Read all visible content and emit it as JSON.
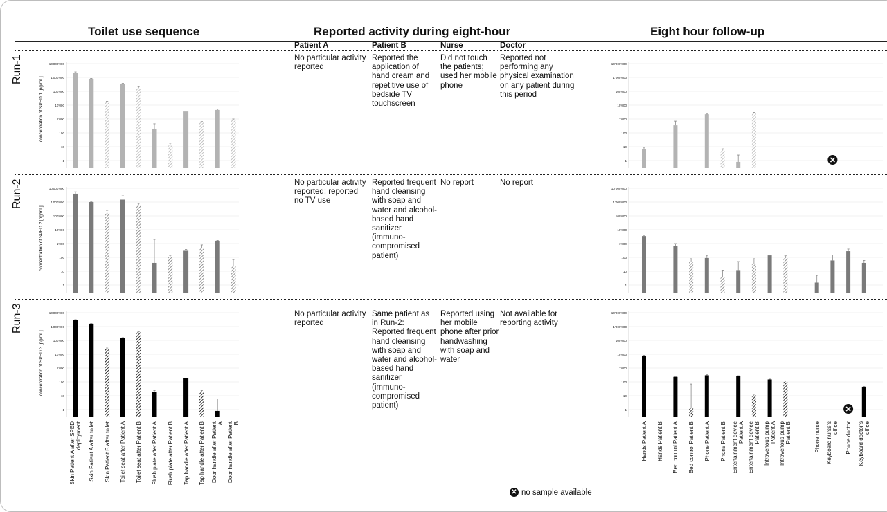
{
  "headers": {
    "toilet": "Toilet use sequence",
    "activity": "Reported activity during eight-hour",
    "followup": "Eight hour follow-up"
  },
  "columns": {
    "patient_a": "Patient A",
    "patient_b": "Patient B",
    "nurse": "Nurse",
    "doctor": "Doctor"
  },
  "runs": [
    {
      "label": "Run-1",
      "ylabel": "concentration of SPED 1 [pg/mL]",
      "notes": {
        "patient_a": "No particular activity reported",
        "patient_b": "Reported the application of hand cream and repetitive use of bedside TV touchscreen",
        "nurse": "Did not touch the patients; used her mobile phone",
        "doctor": "Reported not performing any physical examination on any patient during this period"
      }
    },
    {
      "label": "Run-2",
      "ylabel": "concentration of SPED 2 [pg/mL]",
      "notes": {
        "patient_a": "No particular activity reported; reported no TV use",
        "patient_b": "Reported frequent hand cleansing with soap and water and alcohol-based hand sanitizer (immuno-compromised patient)",
        "nurse": "No report",
        "doctor": "No report"
      }
    },
    {
      "label": "Run-3",
      "ylabel": "concentration of SPED 3 [pg/mL]",
      "notes": {
        "patient_a": "No particular activity reported",
        "patient_b": "Same patient as in Run-2: Reported frequent hand cleansing with soap and water and alcohol-based hand sanitizer (immuno-compromised patient)",
        "nurse": "Reported using her mobile phone after prior handwashing with soap and water",
        "doctor": "Not available for reporting activity"
      }
    }
  ],
  "legend": {
    "icon": "x-circle-icon",
    "text": "no sample available"
  },
  "colors": {
    "run1": "#b3b3b3",
    "run2": "#7a7a7a",
    "run3": "#000000"
  },
  "chart_data": [
    {
      "type": "bar",
      "panel": "Toilet use sequence",
      "yscale": "log",
      "ylim": [
        0.3,
        10000000
      ],
      "y_tick_labels": [
        "10'000'000",
        "1'000'000",
        "100'000",
        "10'000",
        "1'000",
        "100",
        "10",
        "1"
      ],
      "categories": [
        "Skin Patient A after SPED deployment",
        "Skin Patient A after toilet",
        "Skin Patient B after toilet",
        "Toilet seat after Patient A",
        "Toilet seat after Patient B",
        "Flush plate after Patient A",
        "Flush plate after Patient B",
        "Tap handle after Patient A",
        "Tap handle after Patient B",
        "Door handle after Patient A",
        "Door handle after Patient B"
      ],
      "hatched": [
        false,
        false,
        true,
        false,
        true,
        false,
        true,
        false,
        true,
        false,
        true
      ],
      "series": [
        {
          "name": "Run-1",
          "values": [
            2000000,
            800000,
            17000,
            350000,
            180000,
            200,
            12,
            3500,
            550,
            4500,
            900
          ],
          "err_hi": [
            2500000,
            850000,
            19000,
            370000,
            220000,
            450,
            18,
            3800,
            650,
            5200,
            1000
          ]
        },
        {
          "name": "Run-2",
          "values": [
            4000000,
            1000000,
            160000,
            1500000,
            600000,
            40,
            110,
            300,
            500,
            1600,
            25
          ],
          "err_hi": [
            5500000,
            1100000,
            250000,
            2800000,
            800000,
            2000,
            140,
            380,
            800,
            1700,
            70
          ]
        },
        {
          "name": "Run-3",
          "values": [
            3000000,
            1600000,
            25000,
            150000,
            380000,
            20,
            0,
            180,
            18,
            0.8,
            0
          ],
          "err_hi": [
            3200000,
            1700000,
            28000,
            160000,
            420000,
            24,
            0,
            190,
            24,
            6,
            0
          ]
        }
      ]
    },
    {
      "type": "bar",
      "panel": "Eight hour follow-up",
      "yscale": "log",
      "ylim": [
        0.3,
        10000000
      ],
      "y_tick_labels": [
        "10'000'000",
        "1'000'000",
        "100'000",
        "10'000",
        "1'000",
        "100",
        "10",
        "1"
      ],
      "categories": [
        "Hands Patient A",
        "Hands Patient B",
        "Bed control Patient A",
        "Bed control Patient B",
        "Phone Patient A",
        "Phone Patient B",
        "Entertainment device Patient A",
        "Entertainment device Patient B",
        "Intravenous pump Patient A",
        "Intravenous pump Patient B",
        "",
        "Phone nurse",
        "Keyboard nurse's office",
        "Phone doctor",
        "Keyboard doctor's office"
      ],
      "hatched": [
        false,
        true,
        false,
        true,
        false,
        true,
        false,
        true,
        false,
        true,
        false,
        false,
        false,
        false,
        false
      ],
      "series": [
        {
          "name": "Run-1",
          "values": [
            7,
            0,
            350,
            0,
            2200,
            6,
            0.8,
            2800,
            0,
            0,
            0,
            0,
            0,
            0,
            0
          ],
          "err_hi": [
            9,
            0,
            700,
            0,
            2300,
            7,
            2.5,
            3000,
            0,
            0,
            0,
            0,
            0,
            0,
            0
          ],
          "no_sample": [
            false,
            false,
            false,
            false,
            false,
            false,
            false,
            false,
            false,
            false,
            false,
            false,
            true,
            false,
            false
          ]
        },
        {
          "name": "Run-2",
          "values": [
            3500,
            0,
            700,
            45,
            90,
            3.5,
            12,
            35,
            140,
            110,
            0,
            1.5,
            60,
            280,
            40
          ],
          "err_hi": [
            4000,
            0,
            1000,
            80,
            140,
            12,
            50,
            80,
            150,
            130,
            0,
            5,
            150,
            400,
            60
          ],
          "no_sample": [
            false,
            false,
            false,
            false,
            false,
            false,
            false,
            false,
            false,
            false,
            false,
            false,
            false,
            false,
            false
          ]
        },
        {
          "name": "Run-3",
          "values": [
            8000,
            0,
            230,
            1.4,
            300,
            0,
            270,
            11,
            150,
            100,
            0,
            0,
            0,
            0,
            45
          ],
          "err_hi": [
            8500,
            0,
            240,
            70,
            330,
            0,
            280,
            13,
            160,
            120,
            0,
            0,
            0,
            0,
            48
          ],
          "no_sample": [
            false,
            false,
            false,
            false,
            false,
            false,
            false,
            false,
            false,
            false,
            false,
            false,
            false,
            true,
            false
          ]
        }
      ]
    }
  ]
}
